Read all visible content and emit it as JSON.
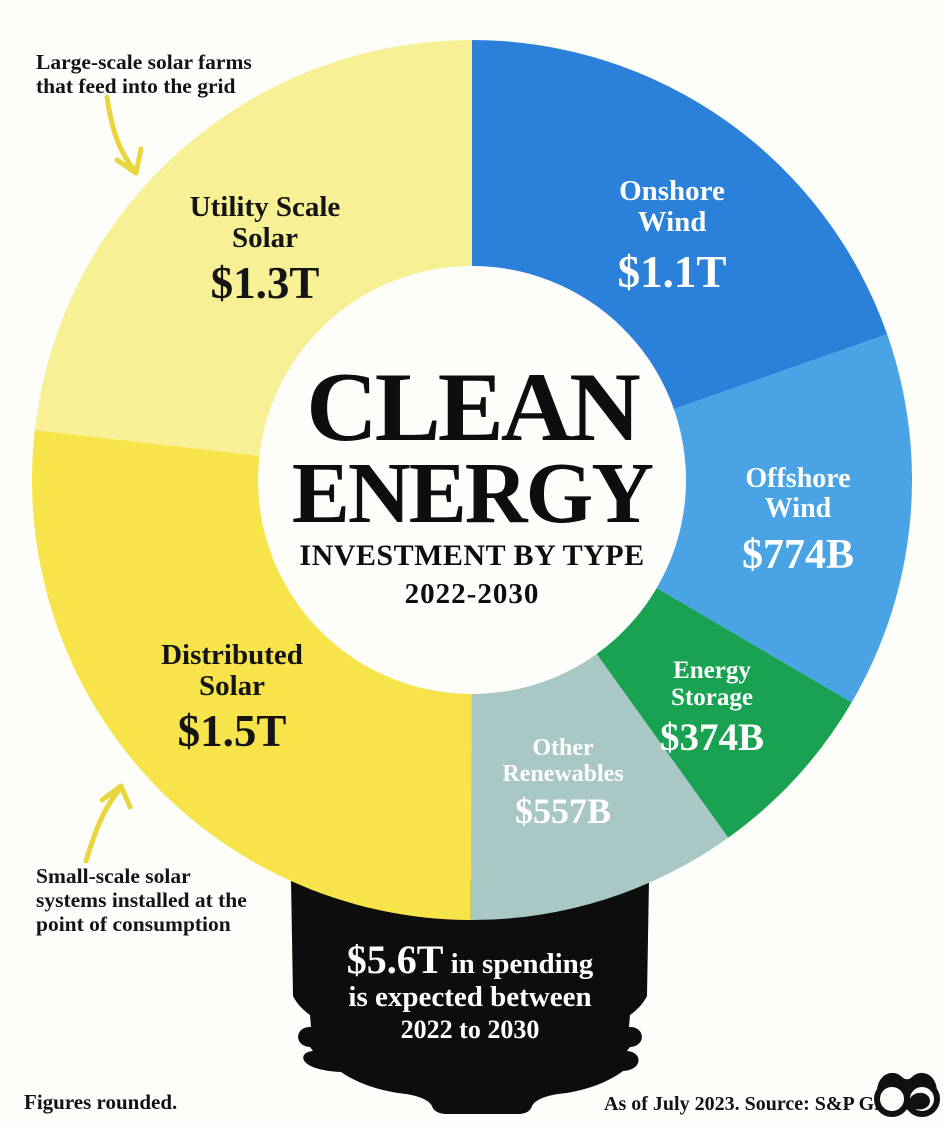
{
  "title": {
    "line1": "CLEAN",
    "line2": "ENERGY",
    "subtitle": "INVESTMENT BY TYPE",
    "period": "2022-2030"
  },
  "chart_data": {
    "type": "pie",
    "donut": true,
    "title": "Clean Energy Investment by Type, 2022-2030",
    "start_angle_deg": 0,
    "direction": "clockwise",
    "total_billion": 5605,
    "total_label": "$5.6T",
    "segments": [
      {
        "label": "Onshore\nWind",
        "value_label": "$1.1T",
        "value_billion": 1100,
        "color": "#2b80d9",
        "text_color": "#ffffff"
      },
      {
        "label": "Offshore\nWind",
        "value_label": "$774B",
        "value_billion": 774,
        "color": "#49a3e4",
        "text_color": "#ffffff"
      },
      {
        "label": "Energy\nStorage",
        "value_label": "$374B",
        "value_billion": 374,
        "color": "#18a251",
        "text_color": "#ffffff"
      },
      {
        "label": "Other\nRenewables",
        "value_label": "$557B",
        "value_billion": 557,
        "color": "#a9c7c4",
        "text_color": "#ffffff"
      },
      {
        "label": "Distributed\nSolar",
        "value_label": "$1.5T",
        "value_billion": 1500,
        "color": "#f7e44a",
        "text_color": "#141414"
      },
      {
        "label": "Utility Scale\nSolar",
        "value_label": "$1.3T",
        "value_billion": 1300,
        "color": "#f8f094",
        "text_color": "#141414"
      }
    ]
  },
  "annotations": {
    "utility_note": "Large-scale solar farms\nthat feed into the grid",
    "distributed_note": "Small-scale solar\nsystems installed at the\npoint of consumption"
  },
  "bulb_note": {
    "highlight": "$5.6T",
    "rest_line1": " in spending",
    "line2": "is expected between",
    "line3": "2022 to 2030"
  },
  "footer": {
    "left": "Figures rounded.",
    "right": "As of July 2023. Source: S&P Global"
  },
  "colors": {
    "background": "#fdfdfa",
    "bulb_base": "#0d0d0d",
    "arrow": "#e9d63d",
    "title_text": "#0e0e0e"
  }
}
